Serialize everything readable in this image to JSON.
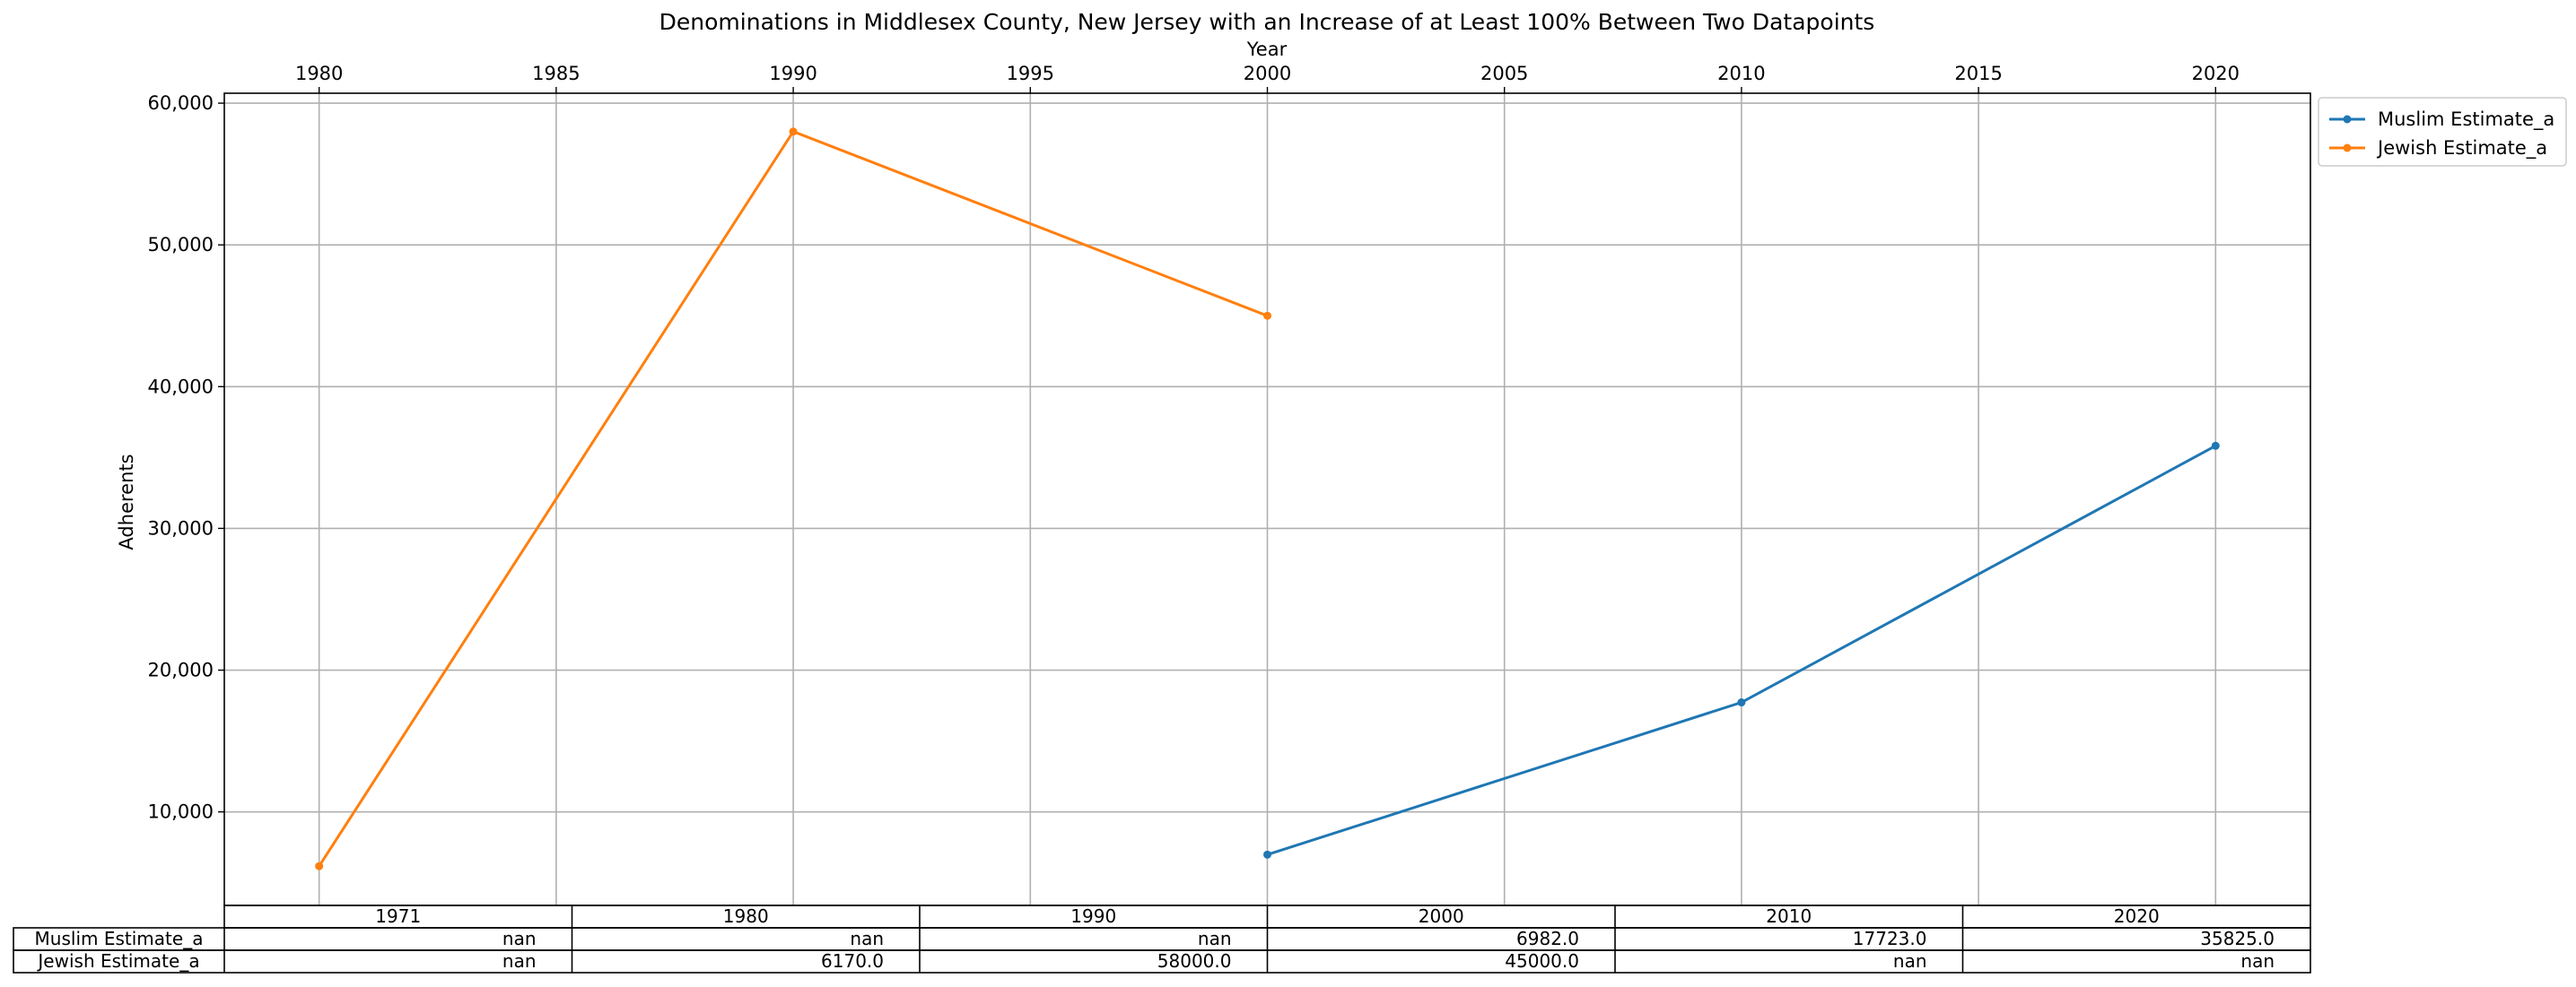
{
  "chart_data": {
    "type": "line",
    "title": "Denominations in Middlesex County, New Jersey with an Increase of at Least 100% Between Two Datapoints",
    "xlabel": "Year",
    "ylabel": "Adherents",
    "xlim": [
      1978,
      2022
    ],
    "ylim": [
      3400,
      60700
    ],
    "x_ticks": [
      1980,
      1985,
      1990,
      1995,
      2000,
      2005,
      2010,
      2015,
      2020
    ],
    "y_ticks": [
      10000,
      20000,
      30000,
      40000,
      50000,
      60000
    ],
    "y_tick_labels": [
      "10,000",
      "20,000",
      "30,000",
      "40,000",
      "50,000",
      "60,000"
    ],
    "grid": true,
    "legend_position": "upper-right-outside",
    "series": [
      {
        "name": "Muslim Estimate_a",
        "color": "#1f77b4",
        "points": [
          {
            "x": 2000,
            "y": 6982
          },
          {
            "x": 2010,
            "y": 17723
          },
          {
            "x": 2020,
            "y": 35825
          }
        ]
      },
      {
        "name": "Jewish Estimate_a",
        "color": "#ff7f0e",
        "points": [
          {
            "x": 1980,
            "y": 6170
          },
          {
            "x": 1990,
            "y": 58000
          },
          {
            "x": 2000,
            "y": 45000
          }
        ]
      }
    ],
    "table": {
      "columns": [
        "1971",
        "1980",
        "1990",
        "2000",
        "2010",
        "2020"
      ],
      "rows": [
        {
          "label": "Muslim Estimate_a",
          "cells": [
            "nan",
            "nan",
            "nan",
            "6982.0",
            "17723.0",
            "35825.0"
          ]
        },
        {
          "label": "Jewish Estimate_a",
          "cells": [
            "nan",
            "6170.0",
            "58000.0",
            "45000.0",
            "nan",
            "nan"
          ]
        }
      ]
    }
  }
}
